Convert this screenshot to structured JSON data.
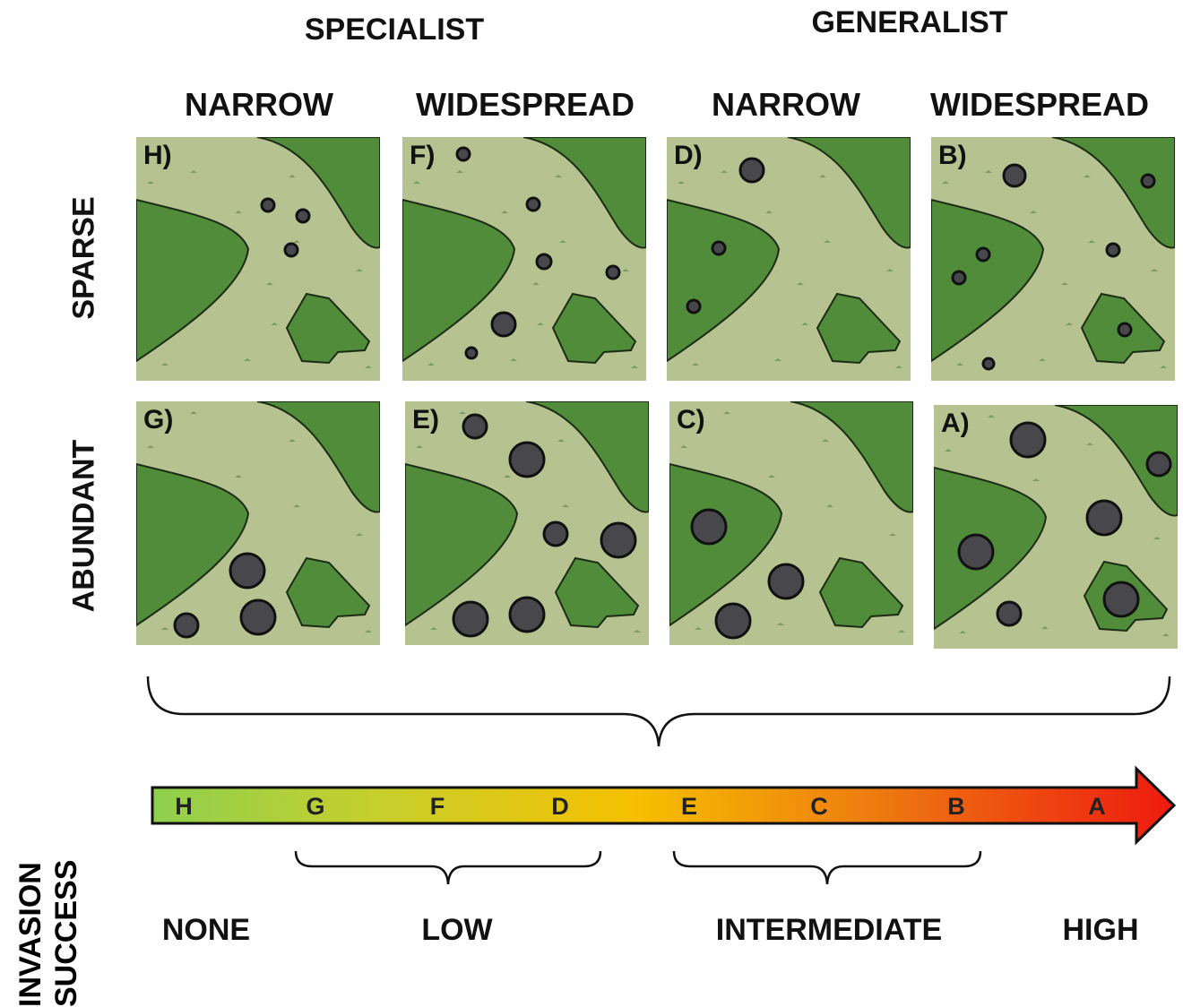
{
  "group_headers": {
    "specialist": "SPECIALIST",
    "generalist": "GENERALIST"
  },
  "column_headers": [
    "NARROW",
    "WIDESPREAD",
    "NARROW",
    "WIDESPREAD"
  ],
  "row_headers": {
    "sparse": "SPARSE",
    "abundant": "ABUNDANT"
  },
  "panels": {
    "H": {
      "label": "H)",
      "habitat_occupied": "matrix",
      "abundance": "sparse"
    },
    "F": {
      "label": "F)",
      "habitat_occupied": "matrix",
      "abundance": "sparse"
    },
    "D": {
      "label": "D)",
      "habitat_occupied": "matrix+patch",
      "abundance": "sparse"
    },
    "B": {
      "label": "B)",
      "habitat_occupied": "all",
      "abundance": "sparse"
    },
    "G": {
      "label": "G)",
      "habitat_occupied": "matrix",
      "abundance": "abundant"
    },
    "E": {
      "label": "E)",
      "habitat_occupied": "matrix",
      "abundance": "abundant"
    },
    "C": {
      "label": "C)",
      "habitat_occupied": "matrix+patch",
      "abundance": "abundant"
    },
    "A": {
      "label": "A)",
      "habitat_occupied": "all",
      "abundance": "abundant"
    }
  },
  "colors": {
    "matrix": "#b6c28f",
    "habitat": "#508c3a",
    "individual": "#48484c",
    "arrow_start": "#8fcf4e",
    "arrow_mid": "#f5c000",
    "arrow_end": "#ee1a10"
  },
  "arrow_letters": [
    "H",
    "G",
    "F",
    "D",
    "E",
    "C",
    "B",
    "A"
  ],
  "axis_title": {
    "line1": "INVASION",
    "line2": "SUCCESS"
  },
  "success_levels": {
    "none": "NONE",
    "low": "LOW",
    "intermediate": "INTERMEDIATE",
    "high": "HIGH"
  }
}
